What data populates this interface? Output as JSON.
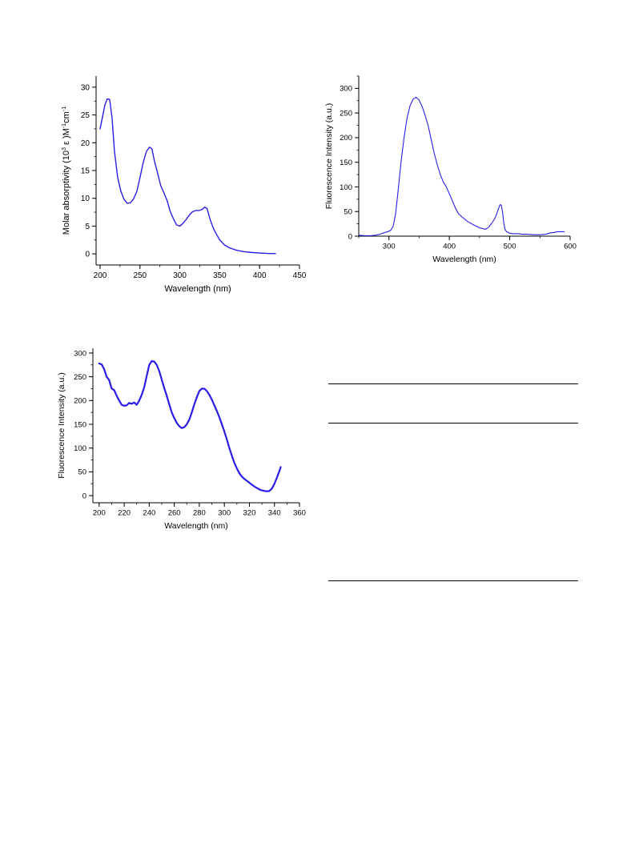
{
  "chart_data": [
    {
      "type": "line",
      "xlabel": "Wavelength (nm)",
      "ylabel_parts": [
        "Molar absorptivity (10",
        "3",
        " ε )M",
        "-1",
        "cm",
        "-1"
      ],
      "xlim": [
        195,
        450
      ],
      "ylim": [
        -2,
        32
      ],
      "xticks": [
        200,
        250,
        300,
        350,
        400,
        450
      ],
      "yticks": [
        0,
        5,
        10,
        15,
        20,
        25,
        30
      ],
      "xtick_labels": [
        "200",
        "250",
        "300",
        "350",
        "400",
        "450"
      ],
      "ytick_labels": [
        "0",
        "5",
        "10",
        "15",
        "20",
        "25",
        "30"
      ],
      "grid": false,
      "color": "#2a1ee6",
      "series": [
        {
          "x": [
            200,
            203,
            206,
            209,
            212,
            215,
            218,
            222,
            226,
            230,
            234,
            238,
            242,
            246,
            250,
            254,
            258,
            262,
            265,
            268,
            272,
            276,
            280,
            284,
            288,
            292,
            296,
            300,
            304,
            308,
            312,
            316,
            320,
            324,
            328,
            331,
            334,
            338,
            342,
            346,
            350,
            356,
            362,
            370,
            380,
            390,
            400,
            410,
            420
          ],
          "y": [
            22.5,
            24.6,
            26.8,
            27.9,
            27.8,
            24.5,
            18.5,
            13.8,
            11.3,
            9.8,
            9.1,
            9.2,
            9.9,
            11.2,
            13.7,
            16.4,
            18.4,
            19.2,
            18.9,
            16.8,
            14.6,
            12.3,
            11.0,
            9.6,
            7.6,
            6.3,
            5.2,
            5.0,
            5.5,
            6.2,
            7.0,
            7.6,
            7.8,
            7.8,
            8.0,
            8.4,
            8.2,
            6.2,
            4.6,
            3.5,
            2.5,
            1.6,
            1.1,
            0.7,
            0.4,
            0.25,
            0.15,
            0.08,
            0.05
          ]
        }
      ]
    },
    {
      "type": "line",
      "xlabel": "Wavelength (nm)",
      "ylabel": "Fluorescence Intensity (a.u.)",
      "xlim": [
        250,
        600
      ],
      "ylim": [
        0,
        325
      ],
      "xticks": [
        300,
        400,
        500,
        600
      ],
      "yticks": [
        0,
        50,
        100,
        150,
        200,
        250,
        300
      ],
      "xtick_labels": [
        "300",
        "400",
        "500",
        "600"
      ],
      "ytick_labels": [
        "0",
        "50",
        "100",
        "150",
        "200",
        "250",
        "300"
      ],
      "grid": false,
      "color": "#2a1ee6",
      "series": [
        {
          "x": [
            250,
            260,
            270,
            278,
            285,
            292,
            298,
            303,
            307,
            311,
            315,
            320,
            325,
            330,
            335,
            340,
            345,
            350,
            355,
            360,
            365,
            370,
            375,
            380,
            385,
            390,
            395,
            400,
            405,
            410,
            415,
            420,
            430,
            440,
            450,
            460,
            465,
            470,
            475,
            478,
            481,
            484,
            486,
            488,
            490,
            492,
            495,
            500,
            505,
            510,
            515,
            520,
            530,
            540,
            550,
            560,
            565,
            570,
            575,
            580,
            585,
            590
          ],
          "y": [
            2,
            1,
            1,
            2,
            4,
            7,
            9,
            12,
            20,
            45,
            90,
            150,
            200,
            240,
            265,
            278,
            282,
            276,
            263,
            245,
            224,
            196,
            168,
            145,
            125,
            110,
            100,
            86,
            72,
            57,
            46,
            40,
            30,
            23,
            17,
            14,
            18,
            26,
            35,
            44,
            55,
            64,
            63,
            50,
            28,
            14,
            9,
            6,
            5,
            5,
            5,
            4,
            4,
            3,
            3,
            4,
            6,
            7,
            8,
            9,
            9,
            9
          ]
        }
      ]
    },
    {
      "type": "line",
      "xlabel": "Wavelength (nm)",
      "ylabel": "Fluorescence Intensity (a.u.)",
      "xlim": [
        195,
        360
      ],
      "ylim": [
        -15,
        310
      ],
      "xticks": [
        200,
        220,
        240,
        260,
        280,
        300,
        320,
        340,
        360
      ],
      "yticks": [
        0,
        50,
        100,
        150,
        200,
        250,
        300
      ],
      "xtick_labels": [
        "200",
        "220",
        "240",
        "260",
        "280",
        "300",
        "320",
        "340",
        "360"
      ],
      "ytick_labels": [
        "0",
        "50",
        "100",
        "150",
        "200",
        "250",
        "300"
      ],
      "grid": false,
      "color": "#2a1ee6",
      "series": [
        {
          "x": [
            200,
            202,
            204,
            206,
            208,
            210,
            212,
            214,
            216,
            218,
            220,
            222,
            224,
            226,
            228,
            230,
            232,
            234,
            236,
            238,
            240,
            242,
            244,
            246,
            248,
            250,
            252,
            254,
            256,
            258,
            260,
            262,
            264,
            266,
            268,
            270,
            272,
            274,
            276,
            278,
            280,
            282,
            284,
            286,
            288,
            290,
            292,
            294,
            296,
            298,
            300,
            302,
            304,
            306,
            308,
            310,
            312,
            314,
            316,
            318,
            320,
            322,
            324,
            326,
            328,
            330,
            332,
            334,
            336,
            338,
            340,
            342,
            344,
            345
          ],
          "y": [
            278,
            276,
            266,
            250,
            243,
            225,
            222,
            210,
            200,
            191,
            189,
            190,
            195,
            193,
            196,
            191,
            200,
            212,
            228,
            252,
            275,
            283,
            282,
            275,
            262,
            244,
            226,
            210,
            192,
            175,
            163,
            153,
            146,
            142,
            144,
            150,
            160,
            175,
            192,
            207,
            220,
            225,
            225,
            220,
            212,
            202,
            190,
            178,
            165,
            150,
            135,
            118,
            100,
            84,
            69,
            57,
            47,
            40,
            35,
            31,
            27,
            23,
            19,
            16,
            13,
            11,
            10,
            9,
            10,
            15,
            25,
            38,
            52,
            60
          ]
        }
      ]
    }
  ]
}
